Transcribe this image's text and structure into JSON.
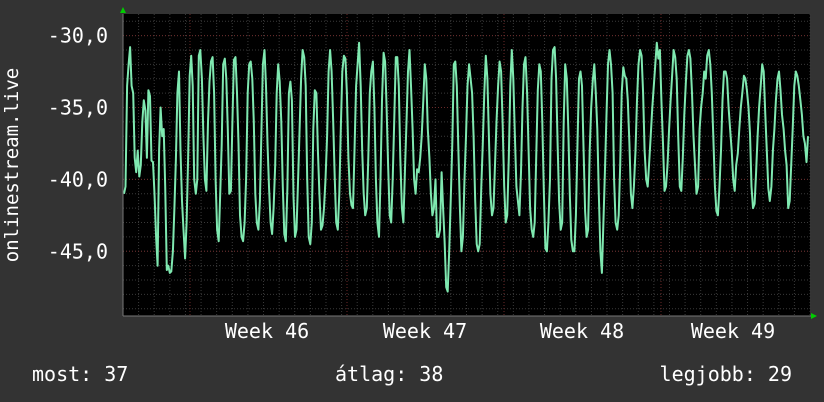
{
  "colors": {
    "background": "#333333",
    "plot_background": "#000000",
    "line": "#7fe8b0",
    "grid_minor": "#3a3a3a",
    "grid_major": "#6b2a2a",
    "axis_arrow": "#00cc00",
    "text": "#ffffff"
  },
  "footer": {
    "now_label": "most:",
    "now_value": "37",
    "avg_label": "átlag:",
    "avg_value": "38",
    "best_label": "legjobb:",
    "best_value": "29"
  },
  "chart_data": {
    "type": "line",
    "ylabel": "onlinestream.live",
    "y_inverted": true,
    "ylim": [
      -28.5,
      -49.5
    ],
    "y_ticks": [
      -30,
      -35,
      -40,
      -45
    ],
    "y_tick_labels": [
      "-30,0",
      "-35,0",
      "-40,0",
      "-45,0"
    ],
    "x_ticks": [
      "Week 46",
      "Week 47",
      "Week 48",
      "Week 49"
    ],
    "grid": true,
    "series": [
      {
        "values": [
          -41.0,
          -40.5,
          -33.5,
          -32.0,
          -30.8,
          -33.5,
          -34.0,
          -38.5,
          -39.5,
          -38.0,
          -39.8,
          -39.0,
          -36.0,
          -34.5,
          -35.2,
          -38.5,
          -33.8,
          -34.2,
          -38.7,
          -38.8,
          -41.0,
          -44.0,
          -46.0,
          -38.0,
          -35.0,
          -37.0,
          -36.5,
          -40.5,
          -46.3,
          -46.0,
          -46.5,
          -46.4,
          -45.0,
          -42.0,
          -38.6,
          -34.0,
          -32.5,
          -38.0,
          -41.5,
          -43.5,
          -45.5,
          -43.0,
          -38.6,
          -32.8,
          -31.4,
          -33.5,
          -40.0,
          -41.0,
          -40.0,
          -31.4,
          -31.0,
          -33.0,
          -37.0,
          -40.0,
          -40.8,
          -36.0,
          -33.2,
          -31.8,
          -31.5,
          -34.0,
          -40.0,
          -43.5,
          -44.3,
          -41.0,
          -37.6,
          -32.0,
          -31.6,
          -33.0,
          -36.5,
          -41.0,
          -40.8,
          -36.0,
          -31.7,
          -31.5,
          -34.0,
          -37.5,
          -42.5,
          -44.0,
          -44.3,
          -43.0,
          -40.0,
          -34.0,
          -32.0,
          -31.8,
          -33.0,
          -36.0,
          -41.0,
          -43.0,
          -43.5,
          -41.5,
          -36.7,
          -32.0,
          -31.0,
          -33.5,
          -37.5,
          -40.5,
          -43.0,
          -43.8,
          -42.0,
          -39.0,
          -34.0,
          -32.0,
          -33.2,
          -36.0,
          -40.5,
          -43.8,
          -44.3,
          -40.6,
          -34.0,
          -33.2,
          -34.5,
          -41.2,
          -44.0,
          -43.5,
          -40.0,
          -36.5,
          -33.0,
          -31.0,
          -31.5,
          -33.5,
          -40.0,
          -44.0,
          -44.5,
          -43.0,
          -36.5,
          -33.8,
          -34.0,
          -38.0,
          -41.0,
          -43.5,
          -43.2,
          -42.0,
          -40.0,
          -37.0,
          -32.5,
          -31.0,
          -32.5,
          -36.0,
          -39.8,
          -43.0,
          -43.5,
          -41.0,
          -36.5,
          -32.5,
          -31.4,
          -31.6,
          -34.0,
          -38.5,
          -41.0,
          -41.8,
          -42.0,
          -38.0,
          -33.5,
          -32.0,
          -30.5,
          -33.5,
          -38.0,
          -41.0,
          -42.5,
          -42.0,
          -38.5,
          -34.0,
          -32.5,
          -31.8,
          -35.0,
          -40.0,
          -43.0,
          -44.0,
          -40.0,
          -34.5,
          -31.2,
          -31.8,
          -35.0,
          -39.0,
          -42.5,
          -43.0,
          -40.0,
          -36.0,
          -31.5,
          -31.5,
          -33.5,
          -38.5,
          -42.0,
          -43.0,
          -39.5,
          -36.0,
          -32.5,
          -31.0,
          -33.5,
          -36.5,
          -40.0,
          -41.0,
          -39.3,
          -39.5,
          -38.5,
          -37.0,
          -34.5,
          -32.0,
          -33.0,
          -36.5,
          -38.5,
          -41.0,
          -42.5,
          -42.0,
          -40.0,
          -44.0,
          -44.0,
          -43.5,
          -39.5,
          -42.0,
          -44.3,
          -47.5,
          -47.8,
          -45.0,
          -41.5,
          -37.5,
          -32.0,
          -31.8,
          -33.5,
          -38.0,
          -42.0,
          -45.0,
          -44.0,
          -40.0,
          -37.0,
          -33.5,
          -32.0,
          -33.0,
          -34.0,
          -37.0,
          -41.5,
          -44.5,
          -45.0,
          -44.5,
          -40.5,
          -37.5,
          -34.0,
          -31.4,
          -33.0,
          -37.0,
          -41.0,
          -42.5,
          -42.0,
          -39.0,
          -36.0,
          -33.5,
          -31.8,
          -32.5,
          -36.0,
          -40.5,
          -43.0,
          -42.5,
          -38.5,
          -33.5,
          -31.0,
          -33.0,
          -37.0,
          -40.5,
          -41.5,
          -42.5,
          -39.5,
          -35.0,
          -32.0,
          -31.5,
          -34.0,
          -38.0,
          -42.0,
          -43.5,
          -44.0,
          -43.0,
          -38.5,
          -33.8,
          -32.0,
          -32.5,
          -36.0,
          -41.0,
          -44.8,
          -45.0,
          -43.0,
          -40.0,
          -33.0,
          -31.0,
          -30.8,
          -33.0,
          -37.5,
          -41.5,
          -43.5,
          -43.0,
          -36.0,
          -32.0,
          -33.0,
          -36.5,
          -41.0,
          -44.2,
          -45.0,
          -45.0,
          -42.5,
          -37.5,
          -33.0,
          -32.5,
          -33.5,
          -38.0,
          -42.2,
          -44.0,
          -43.5,
          -38.0,
          -35.0,
          -33.2,
          -32.0,
          -34.0,
          -36.5,
          -41.0,
          -45.0,
          -46.5,
          -43.0,
          -39.5,
          -35.5,
          -32.0,
          -31.0,
          -32.0,
          -34.0,
          -40.0,
          -43.0,
          -43.5,
          -42.5,
          -39.0,
          -34.0,
          -32.2,
          -32.8,
          -33.0,
          -34.5,
          -37.5,
          -41.0,
          -42.0,
          -40.5,
          -38.0,
          -34.5,
          -32.0,
          -31.0,
          -31.4,
          -34.0,
          -38.0,
          -40.0,
          -40.5,
          -38.8,
          -37.0,
          -35.0,
          -33.5,
          -32.0,
          -30.5,
          -31.6,
          -31.0,
          -34.5,
          -37.5,
          -40.8,
          -40.5,
          -39.0,
          -36.5,
          -34.5,
          -32.8,
          -31.0,
          -31.5,
          -33.0,
          -37.0,
          -40.5,
          -40.8,
          -38.5,
          -35.5,
          -33.2,
          -31.4,
          -31.0,
          -31.6,
          -34.0,
          -37.0,
          -39.0,
          -41.0,
          -40.5,
          -36.5,
          -35.0,
          -34.0,
          -32.5,
          -33.0,
          -31.4,
          -31.0,
          -32.0,
          -34.0,
          -37.0,
          -40.5,
          -42.2,
          -42.5,
          -40.6,
          -38.0,
          -34.5,
          -32.5,
          -32.5,
          -33.0,
          -35.0,
          -36.5,
          -38.0,
          -40.0,
          -40.8,
          -39.0,
          -38.2,
          -36.5,
          -35.0,
          -34.0,
          -32.8,
          -33.0,
          -33.8,
          -35.0,
          -36.8,
          -40.5,
          -42.0,
          -41.7,
          -39.5,
          -37.0,
          -35.0,
          -33.5,
          -32.0,
          -32.5,
          -35.5,
          -38.0,
          -40.6,
          -41.5,
          -40.5,
          -38.0,
          -36.5,
          -34.5,
          -33.0,
          -32.5,
          -33.8,
          -35.5,
          -36.5,
          -38.0,
          -39.0,
          -42.0,
          -41.5,
          -39.0,
          -36.5,
          -33.5,
          -32.5,
          -32.8,
          -33.5,
          -34.5,
          -35.5,
          -37.0,
          -37.5,
          -38.8,
          -37.0
        ]
      }
    ]
  }
}
